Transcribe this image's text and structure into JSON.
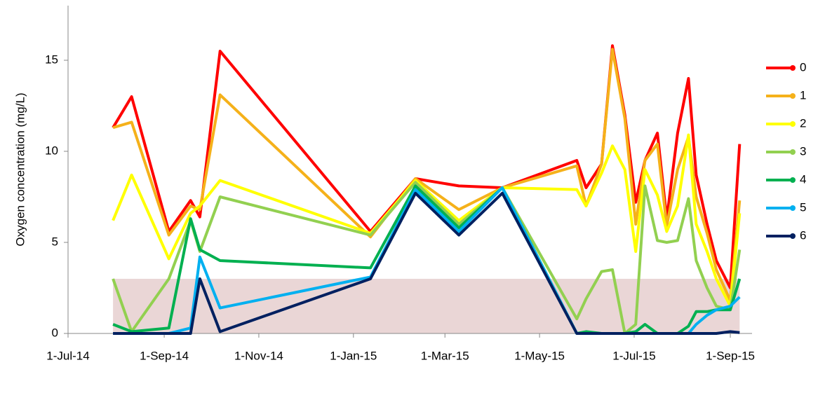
{
  "chart_data": {
    "type": "line",
    "y_label": "Oxygen concentration (mg/L)",
    "x": [
      "2014-07-30",
      "2014-08-11",
      "2014-09-04",
      "2014-09-18",
      "2014-09-24",
      "2014-10-07",
      "2015-01-12",
      "2015-02-10",
      "2015-03-10",
      "2015-04-07",
      "2015-05-25",
      "2015-05-31",
      "2015-06-10",
      "2015-06-17",
      "2015-06-25",
      "2015-07-02",
      "2015-07-08",
      "2015-07-16",
      "2015-07-22",
      "2015-07-29",
      "2015-08-05",
      "2015-08-10",
      "2015-08-17",
      "2015-08-23",
      "2015-09-01",
      "2015-09-07"
    ],
    "series": [
      {
        "name": "0",
        "color": "#ff0000",
        "values": [
          11.3,
          13.0,
          5.6,
          7.3,
          6.4,
          15.5,
          5.6,
          8.5,
          8.1,
          8.0,
          9.5,
          8.0,
          9.3,
          15.8,
          12.0,
          7.2,
          9.5,
          11.0,
          6.3,
          11.0,
          14.0,
          8.7,
          6.0,
          4.0,
          2.5,
          10.4
        ]
      },
      {
        "name": "1",
        "color": "#f5b11a",
        "values": [
          11.3,
          11.6,
          5.4,
          7.0,
          6.8,
          13.1,
          5.3,
          8.5,
          6.8,
          8.0,
          9.2,
          7.0,
          9.3,
          15.6,
          11.8,
          6.0,
          9.5,
          10.4,
          5.9,
          9.0,
          10.8,
          7.5,
          5.5,
          3.5,
          1.8,
          7.3
        ]
      },
      {
        "name": "2",
        "color": "#ffff00",
        "values": [
          6.2,
          8.7,
          4.1,
          6.6,
          7.0,
          8.4,
          5.5,
          8.4,
          6.2,
          8.0,
          7.9,
          7.0,
          8.8,
          10.3,
          9.0,
          4.5,
          9.0,
          7.6,
          5.6,
          7.0,
          10.9,
          6.0,
          4.5,
          3.0,
          1.5,
          6.6
        ]
      },
      {
        "name": "3",
        "color": "#92d050",
        "values": [
          3.0,
          0.1,
          3.0,
          6.2,
          4.5,
          7.5,
          5.4,
          8.3,
          6.0,
          8.0,
          0.8,
          1.9,
          3.4,
          3.5,
          0,
          0.5,
          8.1,
          5.1,
          5.0,
          5.1,
          7.4,
          4.0,
          2.5,
          1.5,
          1.3,
          4.6
        ]
      },
      {
        "name": "4",
        "color": "#00b050",
        "values": [
          0.5,
          0.1,
          0.3,
          6.3,
          4.6,
          4.0,
          3.6,
          8.1,
          5.8,
          8.0,
          0,
          0.1,
          0,
          0,
          0,
          0.1,
          0.5,
          0,
          0,
          0,
          0.4,
          1.2,
          1.2,
          1.3,
          1.3,
          3.0
        ]
      },
      {
        "name": "5",
        "color": "#00b0f0",
        "values": [
          0,
          0,
          0,
          0.3,
          4.2,
          1.4,
          3.1,
          7.9,
          5.6,
          8.0,
          0,
          0,
          0,
          0,
          0,
          0,
          0,
          0,
          0,
          0,
          0,
          0.5,
          1.0,
          1.3,
          1.5,
          2.0
        ]
      },
      {
        "name": "6",
        "color": "#002060",
        "values": [
          0,
          0,
          0,
          0,
          3.0,
          0.1,
          3.0,
          7.7,
          5.4,
          7.7,
          0,
          0,
          0,
          0,
          0,
          0,
          0,
          0,
          0,
          0,
          0,
          0,
          0,
          0,
          0.1,
          0.05
        ]
      }
    ],
    "band": [
      0,
      3
    ],
    "band_color": "#ead6d6",
    "xlim": [
      "2014-07-01",
      "2015-09-15"
    ],
    "xticks": [
      {
        "value": "2014-07-01",
        "label": "1-Jul-14"
      },
      {
        "value": "2014-09-01",
        "label": "1-Sep-14"
      },
      {
        "value": "2014-11-01",
        "label": "1-Nov-14"
      },
      {
        "value": "2015-01-01",
        "label": "1-Jan-15"
      },
      {
        "value": "2015-03-01",
        "label": "1-Mar-15"
      },
      {
        "value": "2015-05-01",
        "label": "1-May-15"
      },
      {
        "value": "2015-07-01",
        "label": "1-Jul-15"
      },
      {
        "value": "2015-09-01",
        "label": "1-Sep-15"
      }
    ],
    "ylim": [
      0,
      18
    ],
    "yticks": [
      0,
      5,
      10,
      15
    ],
    "legend": "right"
  }
}
